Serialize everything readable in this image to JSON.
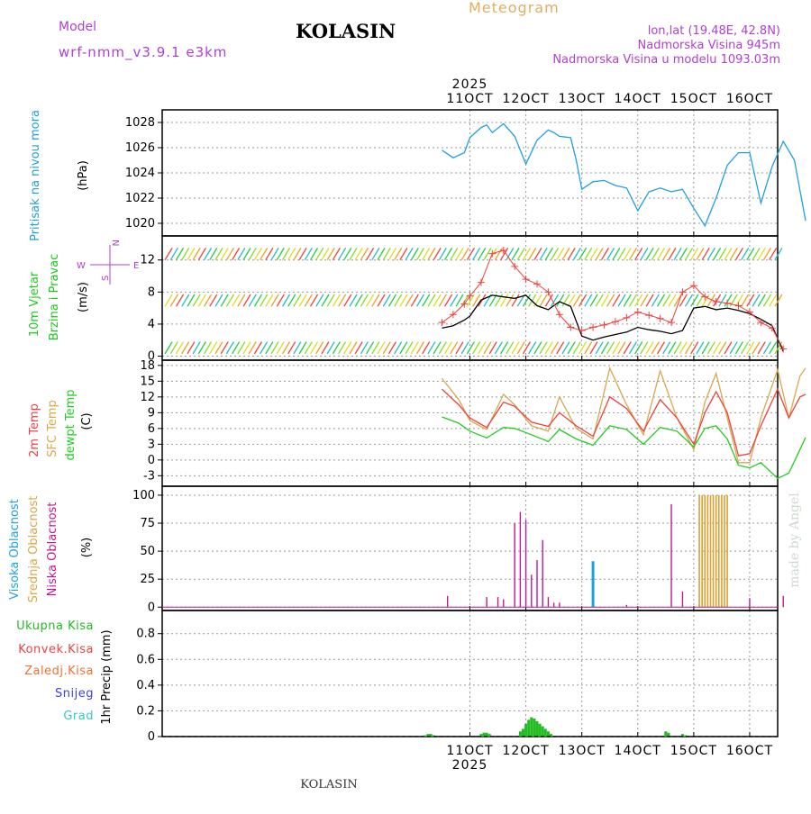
{
  "header": {
    "title": "KOLASIN",
    "model_label": "Model",
    "model_name": "wrf-nmm_v3.9.1  e3km",
    "meteogram_label": "Meteogram",
    "lonlat": "lon,lat (19.48E, 42.8N)",
    "elevation": "Nadmorska Visina 945m",
    "model_elevation": "Nadmorska Visina u modelu 1093.03m",
    "credit": "made by Angel",
    "footer_title": "KOLASIN"
  },
  "colors": {
    "pressure": "#1fa0e0",
    "wind_label": "#1cc81c",
    "temp2m": "#f04040",
    "sfc": "#d8a84a",
    "dewpt": "#22cc22",
    "high_cloud": "#1fa0e0",
    "mid_cloud": "#e0a030",
    "low_cloud": "#c01890",
    "precip": "#22bb22",
    "conv": "#f04040",
    "frozen": "#f07030",
    "snow": "#4040e0",
    "hail": "#30c8c8",
    "purple": "#b040d0"
  },
  "chart_data": {
    "type": "line",
    "x_axis": {
      "unit": "day",
      "xlim": [
        5.5,
        16.5
      ],
      "ticks": [
        11,
        12,
        13,
        14,
        15,
        16
      ],
      "tick_labels": [
        "11OCT",
        "12OCT",
        "13OCT",
        "14OCT",
        "15OCT",
        "16OCT"
      ],
      "year_label": "2025"
    },
    "panels": {
      "pressure": {
        "labels": [
          "Pritisak na nivou mora",
          "(hPa)"
        ],
        "ylim": [
          1019,
          1029
        ],
        "ticks": [
          1020,
          1022,
          1024,
          1026,
          1028
        ],
        "series": [
          {
            "name": "Pritisak",
            "x": [
              10.5,
              10.7,
              10.9,
              11.0,
              11.2,
              11.3,
              11.4,
              11.6,
              11.8,
              12.0,
              12.2,
              12.4,
              12.5,
              12.6,
              12.8,
              12.9,
              13.0,
              13.2,
              13.4,
              13.6,
              13.8,
              14.0,
              14.2,
              14.4,
              14.6,
              14.8,
              15.0,
              15.2,
              15.4,
              15.6,
              15.8,
              16.0,
              16.2,
              16.4,
              16.6,
              16.8,
              17.0
            ],
            "y": [
              1025.8,
              1025.2,
              1025.6,
              1026.8,
              1027.6,
              1027.8,
              1027.2,
              1027.9,
              1026.9,
              1024.7,
              1026.6,
              1027.4,
              1027.2,
              1026.9,
              1026.8,
              1025.0,
              1022.7,
              1023.3,
              1023.4,
              1023.0,
              1022.8,
              1021.0,
              1022.5,
              1022.8,
              1022.5,
              1022.7,
              1021.2,
              1019.8,
              1022.0,
              1024.6,
              1025.6,
              1025.6,
              1021.6,
              1024.5,
              1026.5,
              1025.0,
              1020.2
            ]
          }
        ]
      },
      "wind": {
        "labels": [
          "10m Vjetar",
          "Brzina i Pravac",
          "(m/s)"
        ],
        "compass": [
          "W",
          "E",
          "N",
          "S"
        ],
        "ylim": [
          -0.5,
          15
        ],
        "ticks": [
          0,
          4,
          8,
          12
        ],
        "series": [
          {
            "name": "speed",
            "x": [
              10.5,
              10.7,
              10.9,
              11.0,
              11.2,
              11.4,
              11.6,
              11.8,
              12.0,
              12.2,
              12.4,
              12.6,
              12.8,
              13.0,
              13.2,
              13.4,
              13.6,
              13.8,
              14.0,
              14.2,
              14.4,
              14.6,
              14.8,
              15.0,
              15.2,
              15.4,
              15.6,
              15.8,
              16.0,
              16.2,
              16.4,
              16.6
            ],
            "y": [
              3.5,
              3.8,
              4.5,
              5.0,
              7.0,
              7.6,
              7.4,
              7.2,
              7.6,
              6.3,
              5.8,
              6.8,
              6.2,
              2.5,
              2.0,
              2.4,
              2.7,
              3.0,
              3.6,
              3.3,
              3.1,
              2.8,
              3.2,
              6.0,
              6.2,
              5.8,
              6.0,
              5.7,
              5.3,
              4.6,
              3.8,
              0.6
            ]
          },
          {
            "name": "gust",
            "x": [
              10.5,
              10.7,
              10.9,
              11.0,
              11.2,
              11.4,
              11.6,
              11.8,
              12.0,
              12.2,
              12.4,
              12.6,
              12.8,
              13.0,
              13.2,
              13.4,
              13.6,
              13.8,
              14.0,
              14.2,
              14.4,
              14.6,
              14.8,
              15.0,
              15.2,
              15.4,
              15.6,
              15.8,
              16.0,
              16.2,
              16.4,
              16.6
            ],
            "y": [
              4.2,
              5.2,
              6.5,
              7.5,
              9.2,
              12.8,
              13.2,
              11.2,
              9.6,
              9.0,
              8.0,
              5.2,
              3.6,
              3.2,
              3.6,
              3.9,
              4.3,
              4.8,
              5.5,
              5.1,
              4.7,
              4.2,
              8.0,
              8.8,
              7.4,
              6.8,
              6.6,
              6.3,
              5.5,
              4.2,
              3.5,
              0.9
            ]
          }
        ]
      },
      "temperature": {
        "labels": [
          "2m Temp",
          "SFC Temp",
          "dewpt Temp",
          "(C)"
        ],
        "ylim": [
          -5,
          19
        ],
        "ticks": [
          -3,
          0,
          3,
          6,
          9,
          12,
          15,
          18
        ],
        "series": [
          {
            "name": "2m Temp",
            "x": [
              10.5,
              10.8,
              11.0,
              11.3,
              11.6,
              11.8,
              12.1,
              12.4,
              12.6,
              12.9,
              13.2,
              13.5,
              13.8,
              14.1,
              14.4,
              14.7,
              15.0,
              15.2,
              15.4,
              15.6,
              15.8,
              16.0,
              16.2,
              16.5,
              16.7,
              16.9,
              17.0
            ],
            "y": [
              13.5,
              10.5,
              8.0,
              6.2,
              11.0,
              10.2,
              7.2,
              6.4,
              9.0,
              6.5,
              4.5,
              12.0,
              9.8,
              5.5,
              11.5,
              8.0,
              3.0,
              9.0,
              13.0,
              9.0,
              0.8,
              1.2,
              6.5,
              13.5,
              8.0,
              12.0,
              12.5
            ]
          },
          {
            "name": "SFC Temp",
            "x": [
              10.5,
              10.8,
              11.0,
              11.3,
              11.6,
              11.8,
              12.1,
              12.4,
              12.6,
              12.9,
              13.2,
              13.5,
              13.8,
              14.1,
              14.4,
              14.7,
              15.0,
              15.2,
              15.4,
              15.6,
              15.8,
              16.0,
              16.2,
              16.5,
              16.7,
              16.9,
              17.0
            ],
            "y": [
              15.5,
              11.5,
              7.5,
              5.8,
              12.5,
              10.5,
              6.5,
              5.5,
              12.0,
              6.0,
              4.0,
              17.5,
              10.5,
              4.8,
              17.0,
              8.0,
              2.0,
              11.0,
              16.5,
              8.0,
              -0.5,
              -0.5,
              8.0,
              17.2,
              8.0,
              16.0,
              17.5
            ]
          },
          {
            "name": "dewpt Temp",
            "x": [
              10.5,
              10.8,
              11.0,
              11.3,
              11.6,
              11.8,
              12.1,
              12.4,
              12.6,
              12.9,
              13.2,
              13.5,
              13.8,
              14.1,
              14.4,
              14.7,
              15.0,
              15.2,
              15.4,
              15.6,
              15.8,
              16.0,
              16.2,
              16.5,
              16.7,
              16.9,
              17.0
            ],
            "y": [
              8.2,
              7.0,
              5.5,
              4.2,
              6.2,
              6.0,
              4.8,
              3.5,
              5.8,
              4.0,
              2.8,
              6.5,
              5.8,
              3.0,
              6.2,
              5.5,
              2.5,
              6.0,
              6.5,
              4.0,
              -1.0,
              -1.5,
              -0.5,
              -3.5,
              -2.5,
              2.0,
              4.3
            ]
          }
        ]
      },
      "cloud": {
        "labels": [
          "Visoka Oblacnost",
          "Srednja Oblacnost",
          "Niska Oblacnost",
          "(%)"
        ],
        "ylim": [
          -3,
          108
        ],
        "ticks": [
          0,
          25,
          50,
          75,
          100
        ],
        "low_x": [
          10.6,
          11.3,
          11.5,
          11.6,
          11.8,
          11.9,
          12.0,
          12.1,
          12.2,
          12.3,
          12.4,
          12.5,
          12.6,
          13.2,
          13.8,
          14.6,
          14.8,
          15.1,
          15.5,
          16.0,
          16.6
        ],
        "low_y": [
          10,
          9,
          9,
          7,
          75,
          85,
          78,
          29,
          42,
          60,
          9,
          4,
          4,
          2,
          2,
          92,
          14,
          2,
          2,
          8,
          10
        ],
        "high_x": [
          13.2
        ],
        "high_y": [
          41
        ],
        "mid_x": [
          15.1,
          15.15,
          15.2,
          15.25,
          15.3,
          15.35,
          15.4,
          15.45,
          15.5,
          15.55,
          15.6
        ],
        "mid_y": [
          100,
          100,
          100,
          100,
          100,
          100,
          100,
          100,
          100,
          100,
          100
        ]
      },
      "precip": {
        "labels": [
          "Ukupna Kisa",
          "Konvek.Kisa",
          "Zaledj.Kisa",
          "Snijeg",
          "Grad",
          "1hr Precip (mm)"
        ],
        "ylim": [
          0,
          0.98
        ],
        "ticks": [
          0,
          0.2,
          0.4,
          0.6,
          0.8
        ],
        "x": [
          10.2,
          10.25,
          10.3,
          10.35,
          11.2,
          11.25,
          11.3,
          11.35,
          11.9,
          11.95,
          12.0,
          12.05,
          12.1,
          12.15,
          12.2,
          12.25,
          12.3,
          12.35,
          12.4,
          12.45,
          14.5,
          14.55,
          14.8,
          14.85
        ],
        "y": [
          0.01,
          0.02,
          0.02,
          0.01,
          0.02,
          0.03,
          0.03,
          0.02,
          0.04,
          0.06,
          0.1,
          0.13,
          0.15,
          0.14,
          0.12,
          0.1,
          0.08,
          0.06,
          0.04,
          0.02,
          0.04,
          0.03,
          0.02,
          0.01
        ]
      }
    }
  }
}
